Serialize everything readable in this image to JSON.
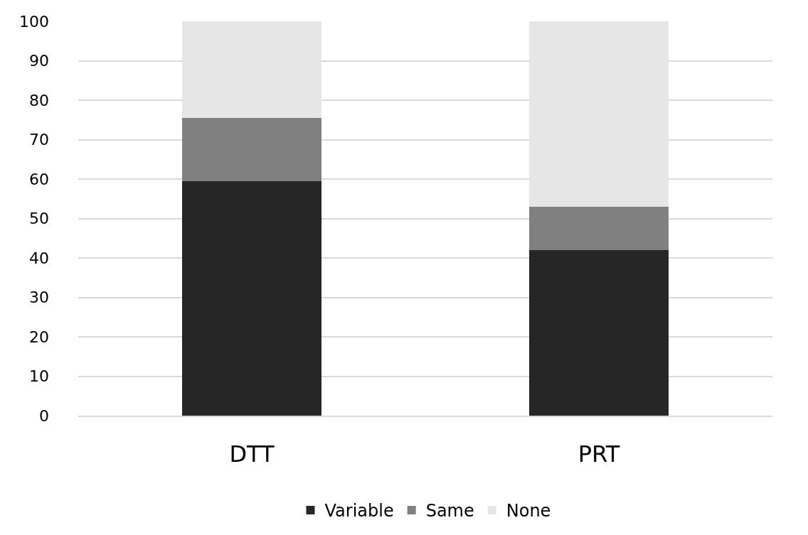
{
  "chart_data": {
    "type": "bar",
    "stacked": true,
    "categories": [
      "DTT",
      "PRT"
    ],
    "series": [
      {
        "name": "Variable",
        "color": "#262626",
        "values": [
          59.5,
          42
        ]
      },
      {
        "name": "Same",
        "color": "#808080",
        "values": [
          16,
          11
        ]
      },
      {
        "name": "None",
        "color": "#e6e6e6",
        "values": [
          24.5,
          47
        ]
      }
    ],
    "ylim": [
      0,
      100
    ],
    "yticks": [
      0,
      10,
      20,
      30,
      40,
      50,
      60,
      70,
      80,
      90,
      100
    ],
    "grid": "y",
    "legend": "bottom"
  }
}
